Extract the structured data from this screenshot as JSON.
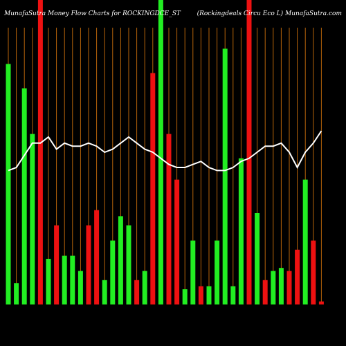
{
  "chart_data": {
    "type": "bar",
    "title": "MunafaSutra  Money Flow  Charts for ROCKINGDCE_ST",
    "subtitle": "(Rockingdeals Circu  Eco  L) MunafaSutra.com",
    "categories": [
      null,
      null,
      null,
      null,
      null,
      null,
      null,
      null,
      null,
      null,
      null,
      null,
      null,
      null,
      null,
      null,
      null,
      null,
      null,
      null,
      null,
      null,
      null,
      null,
      null,
      null,
      null,
      null,
      null,
      null,
      null,
      null,
      null,
      null,
      null,
      null,
      null,
      null,
      null,
      null
    ],
    "ylim": [
      0,
      100
    ],
    "grid": true,
    "grid_color": "#b8650a",
    "series": [
      {
        "type": "bar",
        "values": [
          79,
          7,
          71,
          56,
          100,
          15,
          26,
          16,
          16,
          11,
          26,
          31,
          8,
          21,
          29,
          26,
          8,
          11,
          76,
          100,
          56,
          41,
          5,
          21,
          6,
          6,
          21,
          84,
          6,
          48,
          100,
          30,
          8,
          11,
          12,
          11,
          18,
          41,
          21,
          1
        ],
        "colors": [
          "#22ee22",
          "#22ee22",
          "#22ee22",
          "#22ee22",
          "#ee1111",
          "#22ee22",
          "#ee1111",
          "#22ee22",
          "#22ee22",
          "#22ee22",
          "#ee1111",
          "#ee1111",
          "#22ee22",
          "#22ee22",
          "#22ee22",
          "#22ee22",
          "#ee1111",
          "#22ee22",
          "#ee1111",
          "#22ee22",
          "#ee1111",
          "#ee1111",
          "#22ee22",
          "#22ee22",
          "#ee1111",
          "#22ee22",
          "#22ee22",
          "#22ee22",
          "#22ee22",
          "#22ee22",
          "#ee1111",
          "#22ee22",
          "#ee1111",
          "#22ee22",
          "#22ee22",
          "#ee1111",
          "#ee1111",
          "#22ee22",
          "#ee1111",
          "#ee1111"
        ]
      },
      {
        "type": "line",
        "color": "#ffffff",
        "values": [
          44,
          45,
          49,
          53,
          53,
          55,
          51,
          53,
          52,
          52,
          53,
          52,
          50,
          51,
          53,
          55,
          53,
          51,
          50,
          48,
          46,
          45,
          45,
          46,
          47,
          45,
          44,
          44,
          45,
          47,
          48,
          50,
          52,
          52,
          53,
          50,
          45,
          50,
          53,
          57
        ]
      }
    ]
  }
}
